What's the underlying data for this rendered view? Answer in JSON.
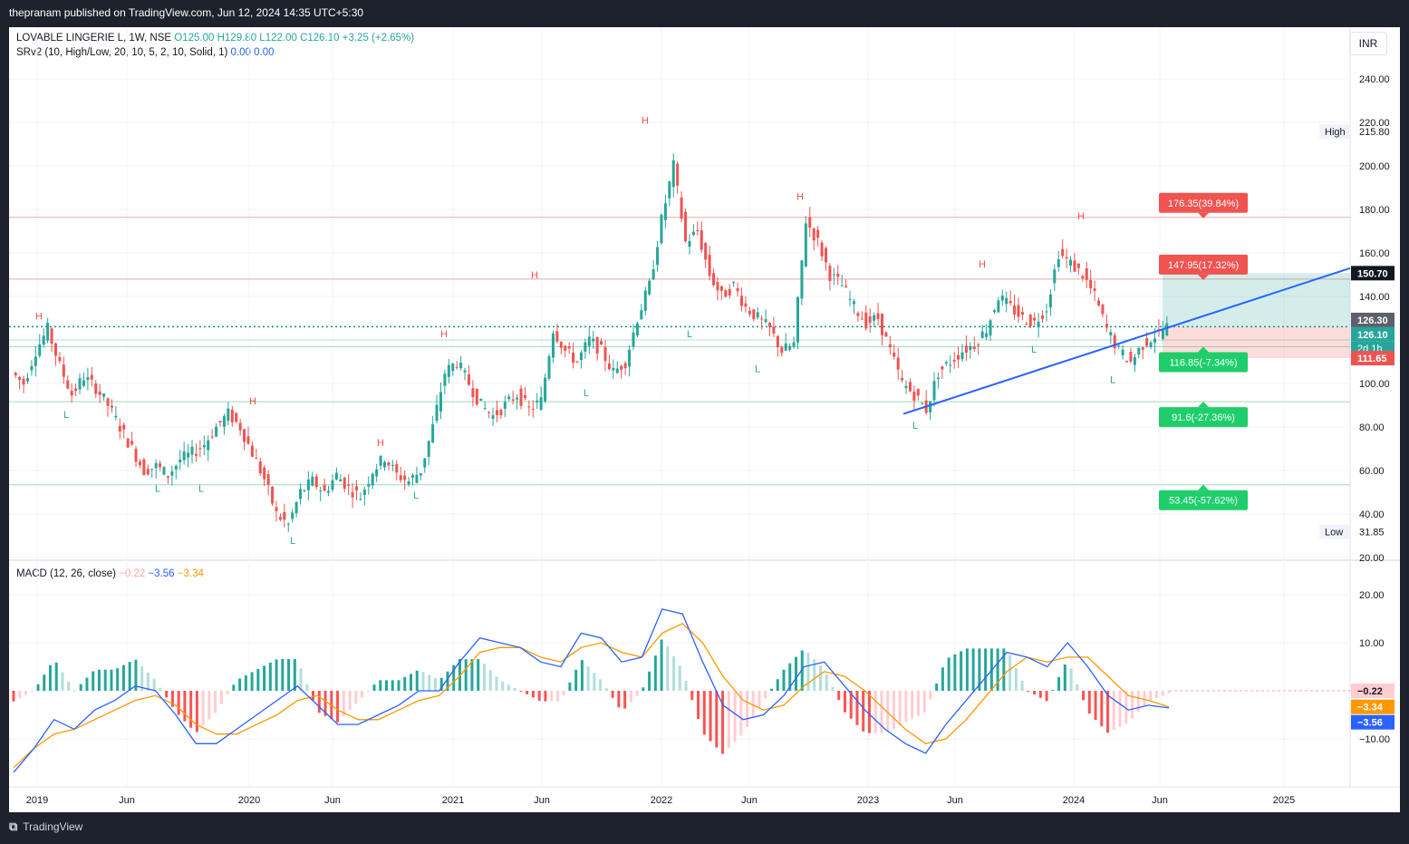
{
  "header": {
    "published_by": "thepranam published on TradingView.com, Jun 12, 2024 14:35 UTC+5:30"
  },
  "footer": {
    "brand": "TradingView"
  },
  "currency": "INR",
  "symbol": {
    "name": "LOVABLE LINGERIE L, 1W, NSE",
    "open": "O125.00",
    "high": "H129.80",
    "low": "L122.00",
    "close": "C126.10",
    "change": "+3.25 (+2.65%)"
  },
  "indicator_srv2": {
    "label": "SRv2 (10, High/Low, 20, 10, 5, 2, 10, Solid, 1)",
    "value1": "0.00",
    "value2": "0.00"
  },
  "indicator_macd": {
    "label": "MACD (12, 26, close)",
    "hist": "−0.22",
    "macd": "−3.56",
    "signal": "−3.34"
  },
  "price_axis": {
    "ticks": [
      "240.00",
      "220.00",
      "200.00",
      "180.00",
      "160.00",
      "140.00",
      "120.00",
      "100.00",
      "80.00",
      "60.00",
      "40.00",
      "20.00"
    ],
    "high_label": "High",
    "high_value": "215.80",
    "low_label": "Low",
    "low_value": "31.85",
    "badges": {
      "trendline": "150.70",
      "last_high": "126.30",
      "last_close": "126.10",
      "countdown": "2d 1h",
      "stop": "111.65"
    }
  },
  "macd_axis": {
    "ticks": [
      "20.00",
      "10.00",
      "−10.00"
    ],
    "badges": {
      "hist": "−0.22",
      "signal": "−3.34",
      "macd": "−3.56"
    }
  },
  "time_axis": [
    "2019",
    "Jun",
    "2020",
    "Jun",
    "2021",
    "Jun",
    "2022",
    "Jun",
    "2023",
    "Jun",
    "2024",
    "Jun",
    "2025"
  ],
  "targets": {
    "t1": "176.35(39.84%)",
    "t2": "147.95(17.32%)",
    "s1": "116.85(-7.34%)",
    "s2": "91.6(-27.36%)",
    "s3": "53.45(-57.62%)"
  },
  "pivot_labels": {
    "high": "H",
    "low": "L"
  },
  "colors": {
    "up": "#26a69a",
    "down": "#ef5350",
    "trendline": "#2962ff",
    "signal": "#ff9800",
    "target_red": "#f05350",
    "target_green": "#1fce6b"
  },
  "chart_data": {
    "type": "candlestick",
    "price_scale": {
      "min": 20,
      "max": 240
    },
    "x": [
      "2019",
      "Jun",
      "2020",
      "Jun",
      "2021",
      "Jun",
      "2022",
      "Jun",
      "2023",
      "Jun",
      "2024",
      "Jun",
      "2025"
    ],
    "all_time_high": 215.8,
    "all_time_low": 31.85,
    "last": {
      "open": 125.0,
      "high": 129.8,
      "low": 122.0,
      "close": 126.1
    },
    "swing_points": [
      {
        "type": "H",
        "price": 126
      },
      {
        "type": "L",
        "price": 90
      },
      {
        "type": "L",
        "price": 56
      },
      {
        "type": "L",
        "price": 56
      },
      {
        "type": "H",
        "price": 87
      },
      {
        "type": "L",
        "price": 32
      },
      {
        "type": "H",
        "price": 68
      },
      {
        "type": "L",
        "price": 53
      },
      {
        "type": "H",
        "price": 118
      },
      {
        "type": "H",
        "price": 145
      },
      {
        "type": "L",
        "price": 100
      },
      {
        "type": "H",
        "price": 216
      },
      {
        "type": "L",
        "price": 127
      },
      {
        "type": "L",
        "price": 111
      },
      {
        "type": "H",
        "price": 181
      },
      {
        "type": "L",
        "price": 85
      },
      {
        "type": "H",
        "price": 150
      },
      {
        "type": "L",
        "price": 120
      },
      {
        "type": "H",
        "price": 172
      },
      {
        "type": "L",
        "price": 106
      }
    ],
    "close_path": [
      105,
      100,
      115,
      125,
      108,
      95,
      103,
      98,
      90,
      80,
      70,
      60,
      62,
      58,
      65,
      68,
      72,
      80,
      86,
      80,
      68,
      56,
      40,
      35,
      50,
      55,
      50,
      58,
      52,
      48,
      60,
      66,
      58,
      55,
      60,
      80,
      105,
      110,
      100,
      90,
      85,
      90,
      95,
      88,
      92,
      125,
      115,
      110,
      120,
      115,
      105,
      110,
      130,
      145,
      175,
      200,
      165,
      170,
      150,
      140,
      145,
      135,
      130,
      125,
      115,
      118,
      175,
      165,
      150,
      145,
      135,
      128,
      130,
      115,
      100,
      95,
      88,
      105,
      110,
      115,
      118,
      125,
      140,
      135,
      130,
      128,
      135,
      160,
      155,
      150,
      140,
      125,
      115,
      110,
      118,
      122,
      126
    ],
    "levels": [
      176.35,
      147.95,
      126.1,
      116.85,
      91.6,
      53.45
    ],
    "macd": {
      "ylim": [
        -20,
        22
      ],
      "macd_path": [
        -17,
        -12,
        -6,
        -8,
        -4,
        -2,
        1,
        0,
        -5,
        -11,
        -11,
        -8,
        -5,
        -2,
        1,
        -3,
        -7,
        -7,
        -5,
        -3,
        0,
        0,
        6,
        11,
        10,
        9,
        6,
        5,
        12,
        11,
        6,
        7,
        17,
        16,
        6,
        -3,
        -6,
        -5,
        -1,
        5,
        6,
        1,
        -4,
        -8,
        -11,
        -13,
        -7,
        -2,
        3,
        8,
        7,
        5,
        10,
        5,
        -1,
        -4,
        -3,
        -3.56
      ],
      "signal_path": [
        -16,
        -12,
        -9,
        -8,
        -6,
        -4,
        -2,
        -1,
        -3,
        -7,
        -9,
        -9,
        -7,
        -5,
        -2,
        -1,
        -4,
        -6,
        -6,
        -4,
        -2,
        -1,
        3,
        8,
        9,
        9,
        7,
        6,
        9,
        10,
        8,
        7,
        12,
        14,
        10,
        3,
        -2,
        -4,
        -3,
        1,
        4,
        3,
        0,
        -4,
        -8,
        -11,
        -10,
        -6,
        -1,
        4,
        7,
        6,
        7,
        7,
        3,
        -1,
        -2,
        -3.34
      ]
    }
  }
}
